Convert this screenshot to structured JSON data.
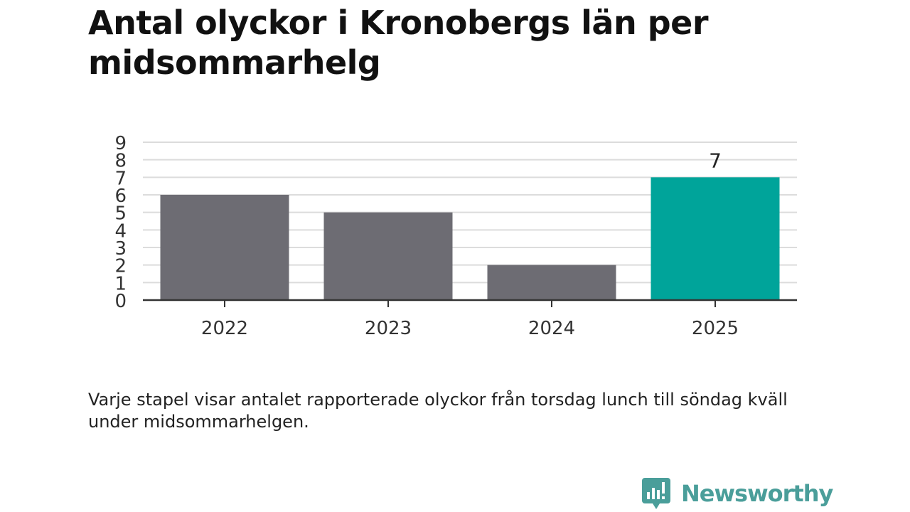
{
  "title": "Antal olyckor i Kronobergs län per midsommarhelg",
  "caption": "Varje stapel visar antalet rapporterade olyckor från torsdag lunch till söndag kväll under midsommarhelgen.",
  "brand": {
    "name": "Newsworthy",
    "icon": "newsworthy-logo-icon"
  },
  "colors": {
    "bar_default": "#6d6c73",
    "bar_highlight": "#00a49a",
    "grid": "#dcdcdc",
    "axis": "#333333",
    "brand": "#4a9e9a"
  },
  "chart_data": {
    "type": "bar",
    "categories": [
      "2022",
      "2023",
      "2024",
      "2025"
    ],
    "values": [
      6,
      5,
      2,
      7
    ],
    "highlight_index": 3,
    "data_labels": [
      "",
      "",
      "",
      "7"
    ],
    "yticks": [
      "0",
      "1",
      "2",
      "3",
      "4",
      "5",
      "6",
      "7",
      "8",
      "9"
    ],
    "ylim": [
      0,
      9
    ],
    "grid": true,
    "legend": false
  }
}
